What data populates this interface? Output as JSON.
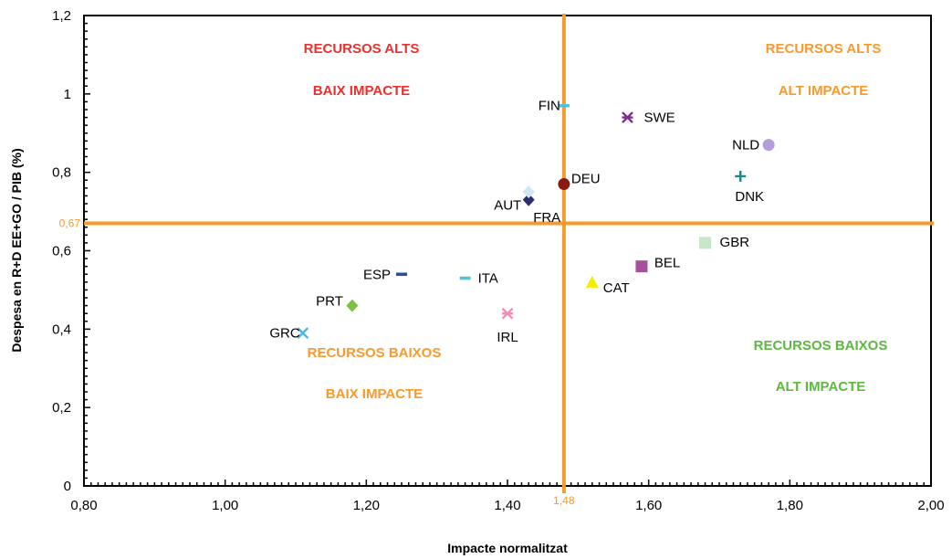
{
  "chart_data": {
    "type": "scatter",
    "title": "",
    "xlabel": "Impacte normalitzat",
    "ylabel": "Despesa en R+D EE+GO / PIB (%)",
    "xlim": [
      0.8,
      2.0
    ],
    "ylim": [
      0,
      1.2
    ],
    "x_ticks": [
      "0,80",
      "1,00",
      "1,20",
      "1,40",
      "1,60",
      "1,80",
      "2,00"
    ],
    "y_ticks": [
      "0",
      "0,2",
      "0,4",
      "0,6",
      "0,8",
      "1",
      "1,2"
    ],
    "grid": false,
    "reference_lines": {
      "x": {
        "value": 1.48,
        "label": "1,48"
      },
      "y": {
        "value": 0.67,
        "label": "0,67"
      },
      "color": "#f79a2e"
    },
    "quadrants": [
      {
        "lines": [
          "RECURSOS ALTS",
          "BAIX IMPACTE"
        ],
        "color": "#e8312e"
      },
      {
        "lines": [
          "RECURSOS ALTS",
          "ALT IMPACTE"
        ],
        "color": "#f79a2e"
      },
      {
        "lines": [
          "RECURSOS BAIXOS",
          "BAIX IMPACTE"
        ],
        "color": "#f79a2e"
      },
      {
        "lines": [
          "RECURSOS BAIXOS",
          "ALT  IMPACTE"
        ],
        "color": "#5cb83e"
      }
    ],
    "points": [
      {
        "name": "FIN",
        "x": 1.48,
        "y": 0.97,
        "marker": "dash",
        "color": "#4fc3d9"
      },
      {
        "name": "SWE",
        "x": 1.57,
        "y": 0.94,
        "marker": "asterisk",
        "color": "#7b2e8e"
      },
      {
        "name": "NLD",
        "x": 1.77,
        "y": 0.87,
        "marker": "circle",
        "color": "#b39ddb"
      },
      {
        "name": "DEU",
        "x": 1.48,
        "y": 0.77,
        "marker": "circle",
        "color": "#8b1a0e"
      },
      {
        "name": "DNK",
        "x": 1.73,
        "y": 0.79,
        "marker": "plus",
        "color": "#1a8a8a"
      },
      {
        "name": "AUT",
        "x": 1.43,
        "y": 0.73,
        "marker": "diamond",
        "color": "#2b2d6e"
      },
      {
        "name": "FRA",
        "x": 1.43,
        "y": 0.75,
        "marker": "diamond",
        "color": "#cfe6f5"
      },
      {
        "name": "GBR",
        "x": 1.68,
        "y": 0.62,
        "marker": "square",
        "color": "#c8e6c9"
      },
      {
        "name": "BEL",
        "x": 1.59,
        "y": 0.56,
        "marker": "square",
        "color": "#a8509e"
      },
      {
        "name": "ESP",
        "x": 1.25,
        "y": 0.54,
        "marker": "dash",
        "color": "#2b4fa8"
      },
      {
        "name": "ITA",
        "x": 1.34,
        "y": 0.53,
        "marker": "dash",
        "color": "#4fc3d9"
      },
      {
        "name": "CAT",
        "x": 1.52,
        "y": 0.52,
        "marker": "triangle",
        "color": "#f2ee00"
      },
      {
        "name": "PRT",
        "x": 1.18,
        "y": 0.46,
        "marker": "diamond",
        "color": "#7cc142"
      },
      {
        "name": "IRL",
        "x": 1.4,
        "y": 0.44,
        "marker": "asterisk",
        "color": "#f28cb8"
      },
      {
        "name": "GRC",
        "x": 1.11,
        "y": 0.39,
        "marker": "x",
        "color": "#4fb3e8"
      }
    ]
  }
}
